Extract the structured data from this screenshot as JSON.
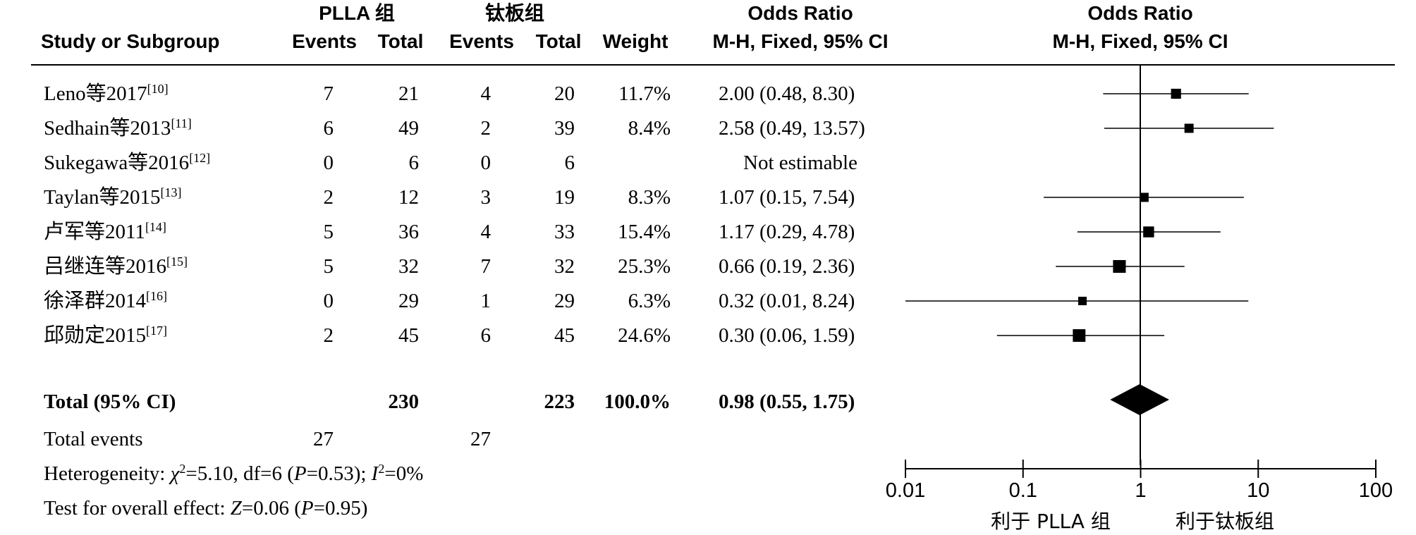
{
  "header": {
    "group1_name": "PLLA 组",
    "group2_name": "钛板组",
    "study_col": "Study or Subgroup",
    "events_label": "Events",
    "total_label": "Total",
    "weight_label": "Weight",
    "or_title": "Odds Ratio",
    "or_method": "M-H, Fixed, 95% CI",
    "plot_title": "Odds Ratio",
    "plot_method": "M-H, Fixed, 95% CI"
  },
  "total_row": {
    "label": "Total (95% CI)",
    "total1": "230",
    "total2": "223",
    "weight": "100.0%",
    "ci_text": "0.98 (0.55, 1.75)"
  },
  "total_events": {
    "label": "Total events",
    "e1": "27",
    "e2": "27"
  },
  "footnotes": {
    "heterogeneity_prefix": "Heterogeneity: ",
    "chi_symbol": "χ",
    "chi_sup": "2",
    "chi_rest": "=5.10, df=6 (",
    "p_symbol": "P",
    "het_p_rest": "=0.53); ",
    "i_symbol": "I",
    "i_sup": "2",
    "i_rest": "=0%",
    "overall_prefix": "Test for overall effect: ",
    "z_symbol": "Z",
    "z_rest": "=0.06 (",
    "overall_p_symbol": "P",
    "overall_p_rest": "=0.95)"
  },
  "axis": {
    "favours_left": "利于 PLLA 组",
    "favours_right": "利于钛板组"
  },
  "chart_data": {
    "type": "forest",
    "scale": "log",
    "xlim": [
      0.01,
      100
    ],
    "null_value": 1,
    "ticks": [
      {
        "value": 0.01,
        "label": "0.01"
      },
      {
        "value": 0.1,
        "label": "0.1"
      },
      {
        "value": 1,
        "label": "1"
      },
      {
        "value": 10,
        "label": "10"
      },
      {
        "value": 100,
        "label": "100"
      }
    ],
    "studies": [
      {
        "name": "Leno等2017",
        "ref": "[10]",
        "e1": "7",
        "t1": "21",
        "e2": "4",
        "t2": "20",
        "weight": "11.7%",
        "or_text": "2.00 (0.48, 8.30)",
        "or": 2.0,
        "lo": 0.48,
        "hi": 8.3,
        "w": 11.7
      },
      {
        "name": "Sedhain等2013",
        "ref": "[11]",
        "e1": "6",
        "t1": "49",
        "e2": "2",
        "t2": "39",
        "weight": "8.4%",
        "or_text": "2.58 (0.49, 13.57)",
        "or": 2.58,
        "lo": 0.49,
        "hi": 13.57,
        "w": 8.4
      },
      {
        "name": "Sukegawa等2016",
        "ref": "[12]",
        "e1": "0",
        "t1": "6",
        "e2": "0",
        "t2": "6",
        "weight": "",
        "or_text": "Not estimable",
        "or": null,
        "lo": null,
        "hi": null,
        "w": 0
      },
      {
        "name": "Taylan等2015",
        "ref": "[13]",
        "e1": "2",
        "t1": "12",
        "e2": "3",
        "t2": "19",
        "weight": "8.3%",
        "or_text": "1.07 (0.15, 7.54)",
        "or": 1.07,
        "lo": 0.15,
        "hi": 7.54,
        "w": 8.3
      },
      {
        "name": "卢军等2011",
        "ref": "[14]",
        "e1": "5",
        "t1": "36",
        "e2": "4",
        "t2": "33",
        "weight": "15.4%",
        "or_text": "1.17 (0.29, 4.78)",
        "or": 1.17,
        "lo": 0.29,
        "hi": 4.78,
        "w": 15.4
      },
      {
        "name": "吕继连等2016",
        "ref": "[15]",
        "e1": "5",
        "t1": "32",
        "e2": "7",
        "t2": "32",
        "weight": "25.3%",
        "or_text": "0.66 (0.19, 2.36)",
        "or": 0.66,
        "lo": 0.19,
        "hi": 2.36,
        "w": 25.3
      },
      {
        "name": "徐泽群2014",
        "ref": "[16]",
        "e1": "0",
        "t1": "29",
        "e2": "1",
        "t2": "29",
        "weight": "6.3%",
        "or_text": "0.32 (0.01, 8.24)",
        "or": 0.32,
        "lo": 0.01,
        "hi": 8.24,
        "w": 6.3
      },
      {
        "name": "邱勋定2015",
        "ref": "[17]",
        "e1": "2",
        "t1": "45",
        "e2": "6",
        "t2": "45",
        "weight": "24.6%",
        "or_text": "0.30 (0.06, 1.59)",
        "or": 0.3,
        "lo": 0.06,
        "hi": 1.59,
        "w": 24.6
      }
    ],
    "pooled": {
      "or": 0.98,
      "lo": 0.55,
      "hi": 1.75
    }
  }
}
